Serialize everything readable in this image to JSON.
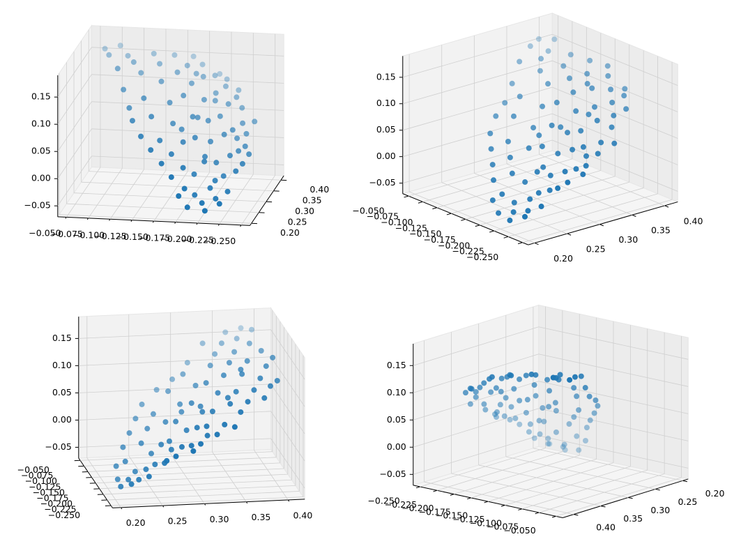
{
  "chart_data": {
    "type": "scatter3d",
    "color": "#1f77b4",
    "x": [
      -0.062,
      -0.07,
      -0.078,
      -0.085,
      -0.09,
      -0.095,
      -0.1,
      -0.105,
      -0.11,
      -0.112,
      -0.118,
      -0.12,
      -0.125,
      -0.128,
      -0.132,
      -0.135,
      -0.138,
      -0.14,
      -0.145,
      -0.148,
      -0.15,
      -0.152,
      -0.155,
      -0.158,
      -0.16,
      -0.162,
      -0.165,
      -0.168,
      -0.17,
      -0.172,
      -0.175,
      -0.176,
      -0.178,
      -0.18,
      -0.182,
      -0.184,
      -0.186,
      -0.188,
      -0.19,
      -0.192,
      -0.194,
      -0.196,
      -0.198,
      -0.2,
      -0.202,
      -0.204,
      -0.206,
      -0.208,
      -0.21,
      -0.212,
      -0.214,
      -0.216,
      -0.218,
      -0.22,
      -0.222,
      -0.224,
      -0.226,
      -0.228,
      -0.23,
      -0.232,
      -0.234,
      -0.236,
      -0.238,
      -0.24,
      -0.242,
      -0.19,
      -0.175,
      -0.2,
      -0.215,
      -0.16,
      -0.185,
      -0.205,
      -0.195,
      -0.18,
      -0.17,
      -0.21,
      -0.225,
      -0.165,
      -0.195,
      -0.22
    ],
    "y": [
      0.38,
      0.36,
      0.39,
      0.33,
      0.37,
      0.31,
      0.35,
      0.29,
      0.34,
      0.27,
      0.38,
      0.3,
      0.25,
      0.36,
      0.28,
      0.33,
      0.24,
      0.39,
      0.26,
      0.31,
      0.35,
      0.23,
      0.29,
      0.37,
      0.25,
      0.32,
      0.22,
      0.34,
      0.27,
      0.39,
      0.24,
      0.3,
      0.36,
      0.22,
      0.28,
      0.33,
      0.25,
      0.38,
      0.23,
      0.31,
      0.35,
      0.26,
      0.29,
      0.22,
      0.37,
      0.32,
      0.24,
      0.27,
      0.34,
      0.3,
      0.23,
      0.36,
      0.26,
      0.31,
      0.28,
      0.35,
      0.24,
      0.33,
      0.29,
      0.26,
      0.32,
      0.3,
      0.27,
      0.34,
      0.29,
      0.4,
      0.21,
      0.39,
      0.38,
      0.4,
      0.21,
      0.21,
      0.27,
      0.31,
      0.36,
      0.25,
      0.31,
      0.29,
      0.34,
      0.22
    ],
    "z": [
      0.165,
      0.162,
      0.168,
      0.15,
      0.158,
      0.12,
      0.155,
      0.095,
      0.14,
      0.08,
      0.16,
      0.11,
      0.06,
      0.15,
      0.085,
      0.13,
      0.04,
      0.155,
      0.05,
      0.1,
      0.14,
      0.02,
      0.07,
      0.145,
      0.03,
      0.11,
      0.0,
      0.125,
      0.045,
      0.14,
      0.01,
      0.08,
      0.13,
      -0.02,
      0.05,
      0.1,
      -0.005,
      0.125,
      -0.035,
      0.07,
      0.105,
      0.015,
      0.04,
      -0.045,
      0.11,
      0.075,
      -0.025,
      0.01,
      0.09,
      0.05,
      -0.04,
      0.095,
      -0.01,
      0.055,
      0.02,
      0.08,
      -0.03,
      0.06,
      0.025,
      0.0,
      0.045,
      0.03,
      0.01,
      0.06,
      0.02,
      0.12,
      -0.03,
      0.115,
      0.1,
      0.15,
      -0.05,
      -0.055,
      0.02,
      0.075,
      0.135,
      -0.015,
      0.04,
      0.06,
      0.095,
      -0.045
    ],
    "xlim": [
      -0.04,
      -0.26
    ],
    "ylim": [
      0.19,
      0.42
    ],
    "zlim": [
      -0.07,
      0.19
    ],
    "xticks": [
      {
        "value": -0.05,
        "label": "−0.050"
      },
      {
        "value": -0.075,
        "label": "−0.075"
      },
      {
        "value": -0.1,
        "label": "−0.100"
      },
      {
        "value": -0.125,
        "label": "−0.125"
      },
      {
        "value": -0.15,
        "label": "−0.150"
      },
      {
        "value": -0.175,
        "label": "−0.175"
      },
      {
        "value": -0.2,
        "label": "−0.200"
      },
      {
        "value": -0.225,
        "label": "−0.225"
      },
      {
        "value": -0.25,
        "label": "−0.250"
      }
    ],
    "yticks": [
      {
        "value": 0.2,
        "label": "0.20"
      },
      {
        "value": 0.25,
        "label": "0.25"
      },
      {
        "value": 0.3,
        "label": "0.30"
      },
      {
        "value": 0.35,
        "label": "0.35"
      },
      {
        "value": 0.4,
        "label": "0.40"
      }
    ],
    "zticks": [
      {
        "value": -0.05,
        "label": "−0.05"
      },
      {
        "value": 0,
        "label": "0.00"
      },
      {
        "value": 0.05,
        "label": "0.05"
      },
      {
        "value": 0.1,
        "label": "0.10"
      },
      {
        "value": 0.15,
        "label": "0.15"
      }
    ]
  }
}
